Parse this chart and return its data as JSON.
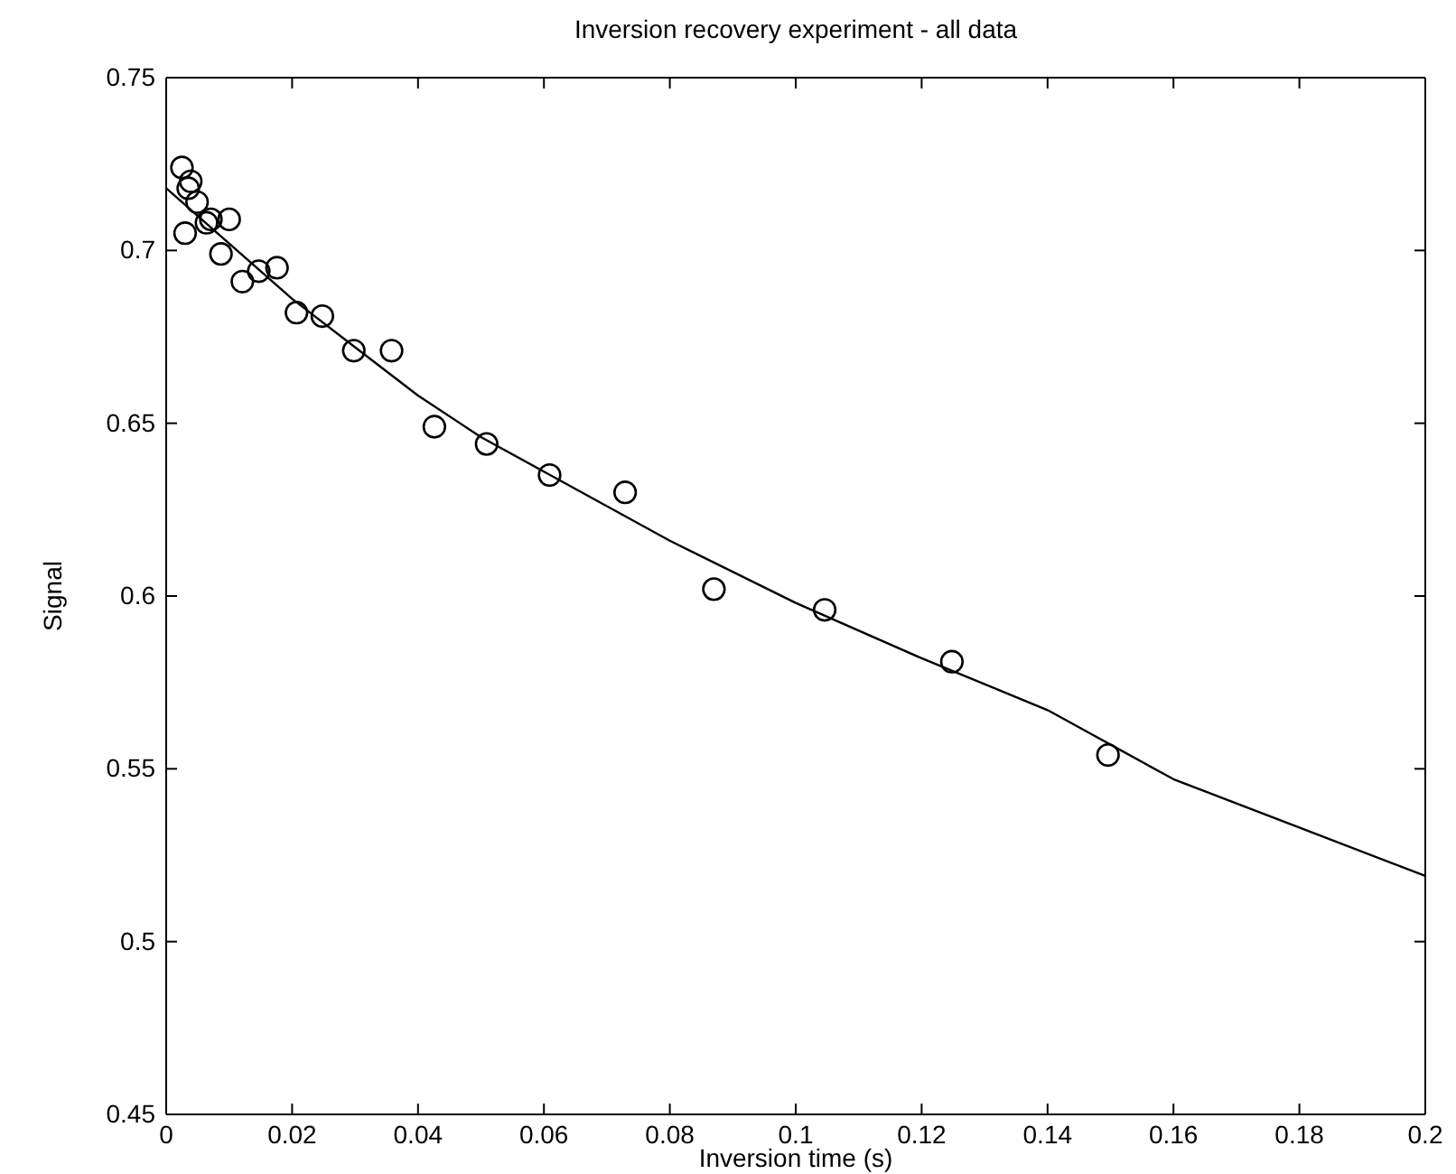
{
  "chart_data": {
    "type": "scatter",
    "title": "Inversion recovery experiment - all data",
    "xlabel": "Inversion time (s)",
    "ylabel": "Signal",
    "xlim": [
      0,
      0.2
    ],
    "ylim": [
      0.45,
      0.75
    ],
    "xticks": [
      0,
      0.02,
      0.04,
      0.06,
      0.08,
      0.1,
      0.12,
      0.14,
      0.16,
      0.18,
      0.2
    ],
    "yticks": [
      0.45,
      0.5,
      0.55,
      0.6,
      0.65,
      0.7,
      0.75
    ],
    "marker": "circle",
    "grid": false,
    "series": [
      {
        "color": "#000000",
        "x": [
          0.0025,
          0.0039,
          0.0035,
          0.0049,
          0.003,
          0.0064,
          0.0071,
          0.01,
          0.0087,
          0.0121,
          0.0147,
          0.0176,
          0.0207,
          0.0248,
          0.0298,
          0.0358,
          0.0426,
          0.0509,
          0.0609,
          0.0729,
          0.087,
          0.1046,
          0.1248,
          0.1496
        ],
        "values": [
          0.724,
          0.72,
          0.718,
          0.714,
          0.705,
          0.708,
          0.709,
          0.709,
          0.699,
          0.691,
          0.694,
          0.695,
          0.682,
          0.681,
          0.671,
          0.671,
          0.649,
          0.644,
          0.635,
          0.63,
          0.602,
          0.596,
          0.581,
          0.554
        ]
      },
      {
        "type": "line",
        "color": "#000000",
        "marker": "none",
        "x": [
          0,
          0.01,
          0.02,
          0.03,
          0.04,
          0.05,
          0.06,
          0.08,
          0.1,
          0.12,
          0.14,
          0.16,
          0.18,
          0.2
        ],
        "values": [
          0.718,
          0.702,
          0.686,
          0.672,
          0.658,
          0.646,
          0.636,
          0.616,
          0.598,
          0.582,
          0.567,
          0.547,
          0.533,
          0.519
        ]
      }
    ]
  }
}
